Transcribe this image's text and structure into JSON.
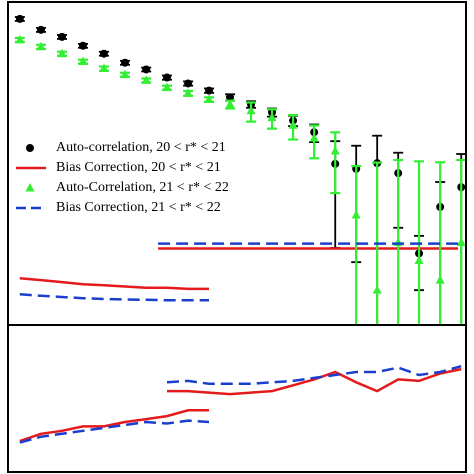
{
  "chart_data": [
    {
      "type": "scatter",
      "log_x": true,
      "log_y": true,
      "xlim": [
        0.01,
        30
      ],
      "ylim": [
        0.01,
        100
      ],
      "legend": "center left",
      "series": [
        {
          "name": "Auto-correlation, 20 < r* < 21",
          "color": "#000000",
          "marker": "circle",
          "x": [
            0.0123,
            0.0178,
            0.0257,
            0.0371,
            0.0535,
            0.0773,
            0.112,
            0.161,
            0.233,
            0.336,
            0.485,
            0.7,
            1.01,
            1.46,
            2.11,
            3.05,
            4.4,
            6.35,
            9.17,
            13.2,
            19.1,
            27.6
          ],
          "values": [
            61.8,
            45.2,
            37.0,
            28.7,
            22.9,
            17.7,
            14.6,
            11.6,
            9.8,
            8.0,
            6.6,
            5.4,
            4.3,
            3.4,
            2.44,
            0.99,
            0.86,
            1.01,
            0.76,
            0.077,
            0.29,
            0.51
          ],
          "errors": [
            3.5,
            2.6,
            2.1,
            1.6,
            1.3,
            1.0,
            0.8,
            0.7,
            0.6,
            0.5,
            0.6,
            0.5,
            0.5,
            0.5,
            0.6,
            0.9,
            0.8,
            1.2,
            0.6,
            0.05,
            0.3,
            0.8
          ]
        },
        {
          "name": "Bias Correction, 20 < r* < 21",
          "color": "#e41a1c",
          "style": "solid",
          "x": [
            0.0123,
            0.0178,
            0.0257,
            0.0371,
            0.0535,
            0.0773,
            0.112,
            0.161,
            0.233,
            0.336,
            null,
            0.138,
            26.1
          ],
          "values": [
            0.038,
            0.036,
            0.034,
            0.032,
            0.031,
            0.03,
            0.029,
            0.029,
            0.028,
            0.028,
            null,
            0.0887,
            0.0887
          ]
        },
        {
          "name": "Auto-Correlation, 21 < r* < 22",
          "color": "#33ee33",
          "marker": "triangle",
          "x": [
            0.0123,
            0.0178,
            0.0257,
            0.0371,
            0.0535,
            0.0773,
            0.112,
            0.161,
            0.233,
            0.336,
            0.485,
            0.7,
            1.01,
            1.46,
            2.11,
            3.05,
            4.4,
            6.35,
            9.17,
            13.2,
            19.1,
            27.6
          ],
          "values": [
            34.0,
            27.9,
            22.9,
            18.3,
            15.0,
            12.6,
            10.7,
            8.7,
            7.4,
            6.2,
            5.4,
            4.5,
            3.7,
            2.98,
            2.06,
            1.43,
            0.23,
            0.027,
            0.105,
            0.063,
            0.036,
            0.105
          ],
          "errors": [
            1.9,
            1.6,
            1.3,
            1.0,
            0.9,
            0.7,
            0.6,
            0.5,
            0.5,
            0.4,
            0.6,
            1.2,
            1.0,
            1.0,
            0.9,
            1.0,
            0.7,
            1.0,
            1.0,
            1.0,
            1.0,
            1.0
          ]
        },
        {
          "name": "Bias Correction, 21 < r* < 22",
          "color": "#1a3fcc",
          "style": "dashed",
          "x": [
            0.0123,
            0.0178,
            0.0257,
            0.0371,
            0.0535,
            0.0773,
            0.112,
            0.161,
            0.233,
            0.336,
            null,
            0.138,
            26.1
          ],
          "values": [
            0.024,
            0.023,
            0.0222,
            0.0215,
            0.021,
            0.0207,
            0.0205,
            0.0203,
            0.0203,
            0.0203,
            null,
            0.102,
            0.102
          ]
        }
      ]
    },
    {
      "type": "line",
      "log_x": true,
      "log_y": false,
      "xlim": [
        0.01,
        30
      ],
      "ylim": [
        0,
        1
      ],
      "series": [
        {
          "color": "#e41a1c",
          "style": "solid",
          "x": [
            0.0123,
            0.0178,
            0.0257,
            0.0371,
            0.0535,
            0.0773,
            0.112,
            0.161,
            0.233,
            0.336,
            null,
            0.161,
            0.233,
            0.336,
            0.485,
            0.7,
            1.01,
            1.46,
            2.11,
            3.05,
            4.4,
            6.35,
            9.17,
            13.2,
            19.1,
            27.6
          ],
          "values": [
            0.21,
            0.26,
            0.28,
            0.31,
            0.31,
            0.34,
            0.36,
            0.38,
            0.42,
            0.42,
            null,
            0.55,
            0.55,
            0.54,
            0.53,
            0.54,
            0.55,
            0.59,
            0.63,
            0.68,
            0.61,
            0.55,
            0.63,
            0.62,
            0.67,
            0.7
          ]
        },
        {
          "color": "#1a3fcc",
          "style": "dashed",
          "x": [
            0.0123,
            0.0178,
            0.0257,
            0.0371,
            0.0535,
            0.0773,
            0.112,
            0.161,
            0.233,
            0.336,
            null,
            0.161,
            0.233,
            0.336,
            0.485,
            0.7,
            1.01,
            1.46,
            2.11,
            3.05,
            4.4,
            6.35,
            9.17,
            13.2,
            19.1,
            27.6
          ],
          "values": [
            0.2,
            0.24,
            0.26,
            0.28,
            0.3,
            0.32,
            0.34,
            0.33,
            0.35,
            0.34,
            null,
            0.61,
            0.62,
            0.6,
            0.6,
            0.6,
            0.61,
            0.62,
            0.64,
            0.66,
            0.68,
            0.68,
            0.71,
            0.66,
            0.68,
            0.72
          ]
        }
      ]
    }
  ]
}
